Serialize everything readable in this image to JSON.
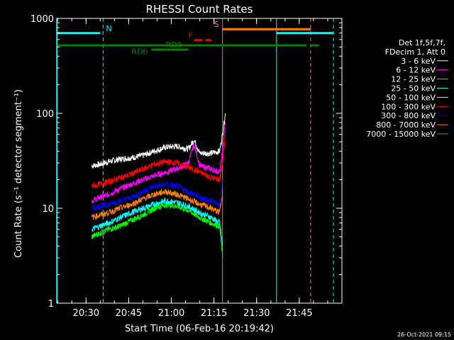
{
  "chart_data": {
    "type": "line",
    "title": "RHESSI Count Rates",
    "xlabel": "Start Time (06-Feb-16 20:19:42)",
    "ylabel": "Count Rate (s⁻¹ detector segment⁻¹)",
    "yscale": "log",
    "ylim": [
      1,
      1000
    ],
    "xlim": [
      "20:19:42",
      "22:00:00"
    ],
    "x_ticks": [
      "20:30",
      "20:45",
      "21:00",
      "21:15",
      "21:30",
      "21:45"
    ],
    "y_ticks": [
      "1",
      "10",
      "100",
      "1000"
    ],
    "legend_header": [
      "Det 1f,5f,7f,",
      "FDecim 1, Att 0"
    ],
    "legend_position": "right",
    "timestamp": "26-Oct-2021 09:15",
    "series": [
      {
        "name": "3 - 6 keV",
        "color": "#ffffff",
        "x": [
          "20:32",
          "20:35",
          "20:38",
          "20:42",
          "20:46",
          "20:50",
          "20:54",
          "20:58",
          "21:02",
          "21:06",
          "21:08",
          "21:10",
          "21:14",
          "21:17",
          "21:18",
          "21:19"
        ],
        "values": [
          28,
          29,
          31,
          33,
          34,
          36,
          40,
          44,
          45,
          42,
          53,
          38,
          38,
          40,
          60,
          100
        ]
      },
      {
        "name": "6 - 12 keV",
        "color": "#ff00ff",
        "x": [
          "20:32",
          "20:35",
          "20:38",
          "20:42",
          "20:46",
          "20:50",
          "20:54",
          "20:58",
          "21:02",
          "21:06",
          "21:08",
          "21:10",
          "21:14",
          "21:17",
          "21:18",
          "21:19"
        ],
        "values": [
          12,
          13,
          14,
          16,
          18,
          20,
          22,
          24,
          26,
          30,
          48,
          28,
          26,
          24,
          40,
          80
        ]
      },
      {
        "name": "12 - 25 keV",
        "color": "#00ff00",
        "x": [
          "20:32",
          "20:35",
          "20:38",
          "20:42",
          "20:46",
          "20:50",
          "20:54",
          "20:58",
          "21:02",
          "21:06",
          "21:10",
          "21:14",
          "21:17",
          "21:18"
        ],
        "values": [
          5,
          5.5,
          6,
          6.5,
          7.5,
          8.5,
          10,
          11,
          10.5,
          9.5,
          8,
          7,
          6.5,
          3
        ]
      },
      {
        "name": "25 - 50 keV",
        "color": "#00ffff",
        "x": [
          "20:32",
          "20:35",
          "20:38",
          "20:42",
          "20:46",
          "20:50",
          "20:54",
          "20:58",
          "21:02",
          "21:06",
          "21:10",
          "21:14",
          "21:17",
          "21:18"
        ],
        "values": [
          6,
          6.5,
          7,
          8,
          9,
          10,
          11,
          12,
          11.5,
          10.5,
          9,
          8,
          7,
          4
        ]
      },
      {
        "name": "50 - 100 keV",
        "color": "#ffff00",
        "x": [],
        "values": []
      },
      {
        "name": "100 - 300 keV",
        "color": "#ff0000",
        "x": [
          "20:32",
          "20:35",
          "20:38",
          "20:42",
          "20:46",
          "20:50",
          "20:54",
          "20:58",
          "21:02",
          "21:06",
          "21:10",
          "21:14",
          "21:17",
          "21:18",
          "21:19"
        ],
        "values": [
          17,
          18,
          19,
          21,
          23,
          26,
          29,
          31,
          30,
          27,
          24,
          21,
          20,
          30,
          60
        ]
      },
      {
        "name": "300 - 800 keV",
        "color": "#0000ff",
        "x": [
          "20:32",
          "20:35",
          "20:38",
          "20:42",
          "20:46",
          "20:50",
          "20:54",
          "20:58",
          "21:02",
          "21:06",
          "21:10",
          "21:14",
          "21:17",
          "21:18"
        ],
        "values": [
          10,
          10.5,
          11,
          12,
          13,
          15,
          17,
          18,
          17,
          15,
          13,
          12,
          11,
          20
        ]
      },
      {
        "name": "800 - 7000 keV",
        "color": "#ff8000",
        "x": [
          "20:32",
          "20:35",
          "20:38",
          "20:42",
          "20:46",
          "20:50",
          "20:54",
          "20:58",
          "21:02",
          "21:06",
          "21:10",
          "21:14",
          "21:17",
          "21:18"
        ],
        "values": [
          8,
          8.5,
          9,
          10,
          11,
          12.5,
          14,
          15,
          14,
          12.5,
          11,
          10,
          9,
          15
        ]
      },
      {
        "name": "7000 - 15000 keV",
        "color": "#808000",
        "x": [],
        "values": []
      }
    ],
    "vertical_lines": [
      {
        "x": "20:19:50",
        "color": "#00ffff",
        "style": "solid"
      },
      {
        "x": "20:36",
        "color": "#00ffff",
        "style": "dashed"
      },
      {
        "x": "21:18",
        "color": "#ff8000",
        "style": "solid"
      },
      {
        "x": "21:37",
        "color": "#00ffff",
        "style": "solid"
      },
      {
        "x": "21:49",
        "color": "#ff8000",
        "style": "dashed"
      },
      {
        "x": "21:57",
        "color": "#00ffff",
        "style": "dashed"
      }
    ],
    "flag_bars": [
      {
        "label": "N",
        "color": "#00ffff",
        "y": 700,
        "segments": [
          [
            "20:19:50",
            "20:35"
          ],
          [
            "21:37",
            "21:57"
          ]
        ],
        "label_x": "20:37"
      },
      {
        "label": "",
        "color": "#008000",
        "y": 520,
        "segments": [
          [
            "20:19:50",
            "21:47:30"
          ],
          [
            "21:49",
            "21:52"
          ]
        ],
        "label_x": ""
      },
      {
        "label": "RD0",
        "color": "#008000",
        "y": 470,
        "segments": [
          [
            "20:53",
            "21:06"
          ]
        ],
        "label_x": "20:58"
      },
      {
        "label": "RD6",
        "color": "#008000",
        "y": 420,
        "segments": [],
        "label_x": "20:46"
      },
      {
        "label": "F",
        "color": "#ff0000",
        "y": 590,
        "segments": [
          [
            "21:08",
            "21:11"
          ],
          [
            "21:12",
            "21:14"
          ]
        ],
        "label_x": "21:06"
      },
      {
        "label": "S",
        "color": "#ff8000",
        "y": 770,
        "segments": [
          [
            "21:18",
            "21:49"
          ]
        ],
        "label_x": "21:15"
      }
    ]
  }
}
